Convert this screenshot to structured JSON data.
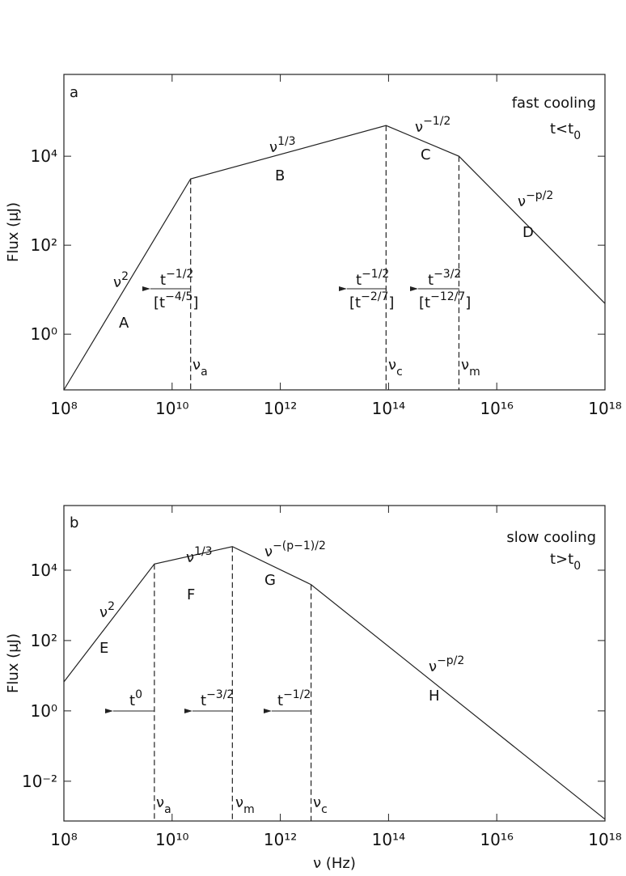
{
  "chart_data": [
    {
      "type": "line",
      "panel": "a",
      "xlog": true,
      "ylog": true,
      "y_label": "Flux (μJ)",
      "xlim": [
        100000000.0,
        1e+18
      ],
      "ylim": [
        0.056,
        690000
      ],
      "xticks": [
        {
          "value": 100000000.0,
          "label": "10⁸"
        },
        {
          "value": 10000000000.0,
          "label": "10¹⁰"
        },
        {
          "value": 1000000000000.0,
          "label": "10¹²"
        },
        {
          "value": 100000000000000.0,
          "label": "10¹⁴"
        },
        {
          "value": 1e+16,
          "label": "10¹⁶"
        },
        {
          "value": 1e+18,
          "label": "10¹⁸"
        }
      ],
      "yticks": [
        {
          "value": 1,
          "label": "10⁰"
        },
        {
          "value": 100,
          "label": "10²"
        },
        {
          "value": 10000,
          "label": "10⁴"
        }
      ],
      "x": [
        100000000.0,
        22000000000.0,
        90000000000000.0,
        2000000000000000.0,
        1e+18
      ],
      "series": [
        {
          "color": "#222222",
          "values": [
            0.056,
            3100,
            49000,
            10000,
            4.9
          ]
        }
      ],
      "annotations": [
        {
          "parts": [
            {
              "text": "fast cooling"
            }
          ]
        },
        {
          "parts": [
            {
              "text": "t<t"
            },
            {
              "text": "0",
              "shift": "sub"
            }
          ]
        },
        {
          "parts": [
            {
              "text": "ν"
            },
            {
              "text": "2",
              "shift": "sup"
            }
          ]
        },
        {
          "parts": [
            {
              "text": "A"
            }
          ]
        },
        {
          "parts": [
            {
              "text": "ν"
            },
            {
              "text": "1/3",
              "shift": "sup"
            }
          ]
        },
        {
          "parts": [
            {
              "text": "B"
            }
          ]
        },
        {
          "parts": [
            {
              "text": "ν"
            },
            {
              "text": "−1/2",
              "shift": "sup"
            }
          ]
        },
        {
          "parts": [
            {
              "text": "C"
            }
          ]
        },
        {
          "parts": [
            {
              "text": "ν"
            },
            {
              "text": "−p/2",
              "shift": "sup"
            }
          ]
        },
        {
          "parts": [
            {
              "text": "D"
            }
          ]
        },
        {
          "parts": [
            {
              "text": "t"
            },
            {
              "text": "−1/2",
              "shift": "sup"
            }
          ]
        },
        {
          "parts": [
            {
              "text": "[t"
            },
            {
              "text": "−4/5",
              "shift": "sup"
            },
            {
              "text": "]"
            }
          ]
        },
        {
          "parts": [
            {
              "text": "t"
            },
            {
              "text": "−1/2",
              "shift": "sup"
            }
          ]
        },
        {
          "parts": [
            {
              "text": "[t"
            },
            {
              "text": "−2/7",
              "shift": "sup"
            },
            {
              "text": "]"
            }
          ]
        },
        {
          "parts": [
            {
              "text": "t"
            },
            {
              "text": "−3/2",
              "shift": "sup"
            }
          ]
        },
        {
          "parts": [
            {
              "text": "[t"
            },
            {
              "text": "−12/7",
              "shift": "sup"
            },
            {
              "text": "]"
            }
          ]
        },
        {
          "parts": [
            {
              "text": "ν"
            },
            {
              "text": "a",
              "shift": "sub"
            }
          ]
        },
        {
          "parts": [
            {
              "text": "ν"
            },
            {
              "text": "c",
              "shift": "sub"
            }
          ]
        },
        {
          "parts": [
            {
              "text": "ν"
            },
            {
              "text": "m",
              "shift": "sub"
            }
          ]
        }
      ]
    },
    {
      "type": "line",
      "panel": "b",
      "xlog": true,
      "ylog": true,
      "x_label": "ν (Hz)",
      "y_label": "Flux (μJ)",
      "xlim": [
        100000000.0,
        1e+18
      ],
      "ylim": [
        0.00074,
        690000
      ],
      "xticks": [
        {
          "value": 100000000.0,
          "label": "10⁸"
        },
        {
          "value": 10000000000.0,
          "label": "10¹⁰"
        },
        {
          "value": 1000000000000.0,
          "label": "10¹²"
        },
        {
          "value": 100000000000000.0,
          "label": "10¹⁴"
        },
        {
          "value": 1e+16,
          "label": "10¹⁶"
        },
        {
          "value": 1e+18,
          "label": "10¹⁸"
        }
      ],
      "yticks": [
        {
          "value": 0.01,
          "label": "10⁻²"
        },
        {
          "value": 1,
          "label": "10⁰"
        },
        {
          "value": 100,
          "label": "10²"
        },
        {
          "value": 10000,
          "label": "10⁴"
        }
      ],
      "x": [
        100000000.0,
        4700000000.0,
        130000000000.0,
        3700000000000.0,
        1e+18
      ],
      "series": [
        {
          "color": "#222222",
          "values": [
            6.7,
            15000,
            47000,
            3900,
            0.00083
          ]
        }
      ],
      "annotations": [
        {
          "parts": [
            {
              "text": "slow cooling"
            }
          ]
        },
        {
          "parts": [
            {
              "text": "t>t"
            },
            {
              "text": "0",
              "shift": "sub"
            }
          ]
        },
        {
          "parts": [
            {
              "text": "ν"
            },
            {
              "text": "2",
              "shift": "sup"
            }
          ]
        },
        {
          "parts": [
            {
              "text": "E"
            }
          ]
        },
        {
          "parts": [
            {
              "text": "ν"
            },
            {
              "text": "1/3",
              "shift": "sup"
            }
          ]
        },
        {
          "parts": [
            {
              "text": "F"
            }
          ]
        },
        {
          "parts": [
            {
              "text": "ν"
            },
            {
              "text": "−(p−1)/2",
              "shift": "sup"
            }
          ]
        },
        {
          "parts": [
            {
              "text": "G"
            }
          ]
        },
        {
          "parts": [
            {
              "text": "ν"
            },
            {
              "text": "−p/2",
              "shift": "sup"
            }
          ]
        },
        {
          "parts": [
            {
              "text": "H"
            }
          ]
        },
        {
          "parts": [
            {
              "text": "t"
            },
            {
              "text": "0",
              "shift": "sup"
            }
          ]
        },
        {
          "parts": [
            {
              "text": "t"
            },
            {
              "text": "−3/2",
              "shift": "sup"
            }
          ]
        },
        {
          "parts": [
            {
              "text": "t"
            },
            {
              "text": "−1/2",
              "shift": "sup"
            }
          ]
        },
        {
          "parts": [
            {
              "text": "ν"
            },
            {
              "text": "a",
              "shift": "sub"
            }
          ]
        },
        {
          "parts": [
            {
              "text": "ν"
            },
            {
              "text": "m",
              "shift": "sub"
            }
          ]
        },
        {
          "parts": [
            {
              "text": "ν"
            },
            {
              "text": "c",
              "shift": "sub"
            }
          ]
        }
      ]
    }
  ]
}
